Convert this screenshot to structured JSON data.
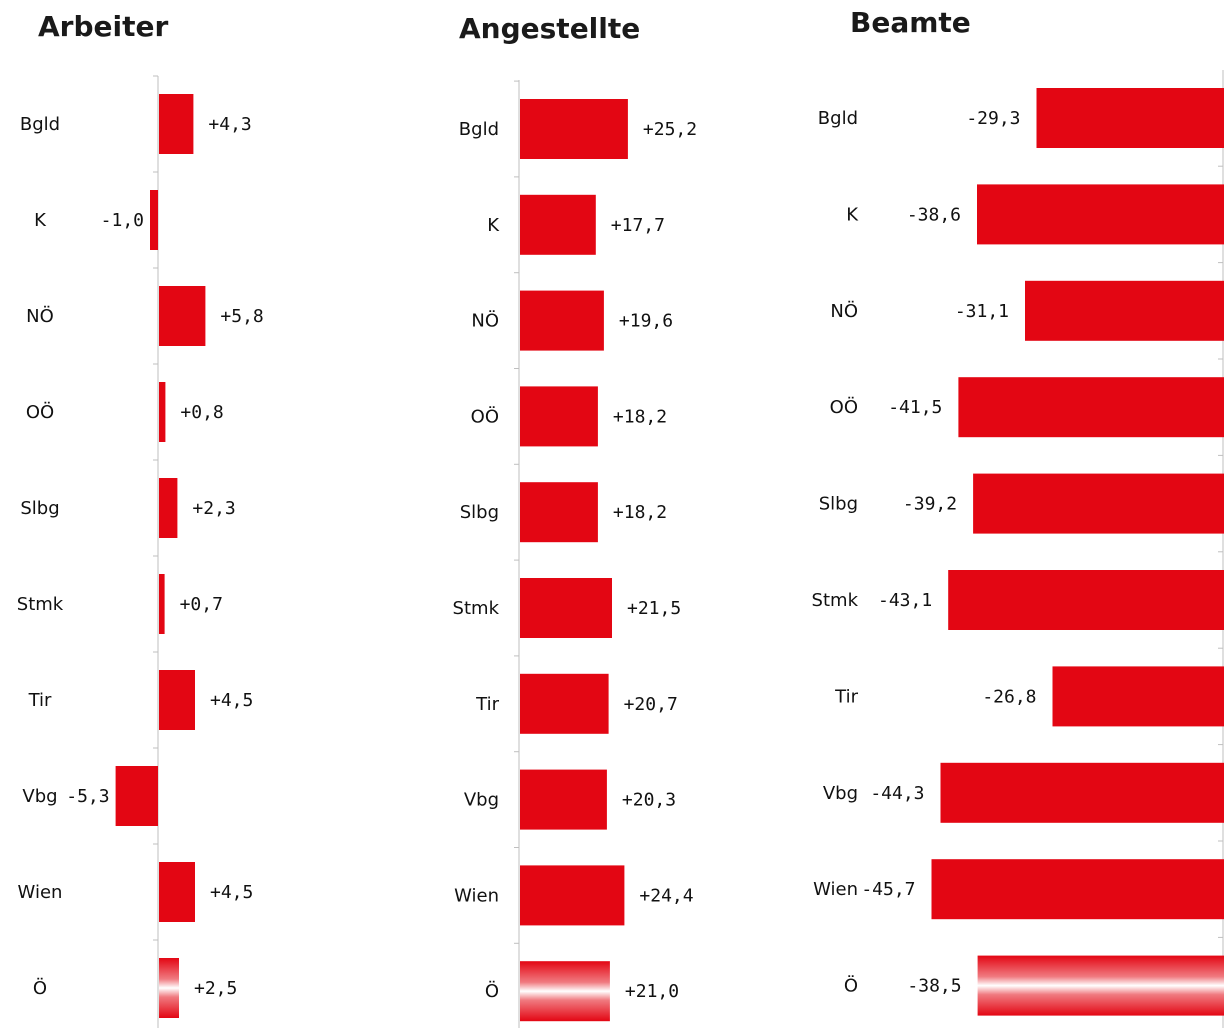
{
  "colors": {
    "bar": "#e30613",
    "axis": "#bfbfbf",
    "text": "#111111"
  },
  "chart_data": [
    {
      "type": "bar",
      "orientation": "horizontal",
      "title": "Arbeiter",
      "categories": [
        "Bgld",
        "K",
        "NÖ",
        "OÖ",
        "Slbg",
        "Stmk",
        "Tir",
        "Vbg",
        "Wien",
        "Ö"
      ],
      "values": [
        4.3,
        -1.0,
        5.8,
        0.8,
        2.3,
        0.7,
        4.5,
        -5.3,
        4.5,
        2.5
      ],
      "labels": [
        "+4,3",
        "-1,0",
        "+5,8",
        "+0,8",
        "+2,3",
        "+0,7",
        "+4,5",
        "-5,3",
        "+4,5",
        "+2,5"
      ],
      "highlight_last": true
    },
    {
      "type": "bar",
      "orientation": "horizontal",
      "title": "Angestellte",
      "categories": [
        "Bgld",
        "K",
        "NÖ",
        "OÖ",
        "Slbg",
        "Stmk",
        "Tir",
        "Vbg",
        "Wien",
        "Ö"
      ],
      "values": [
        25.2,
        17.7,
        19.6,
        18.2,
        18.2,
        21.5,
        20.7,
        20.3,
        24.4,
        21.0
      ],
      "labels": [
        "+25,2",
        "+17,7",
        "+19,6",
        "+18,2",
        "+18,2",
        "+21,5",
        "+20,7",
        "+20,3",
        "+24,4",
        "+21,0"
      ],
      "highlight_last": true
    },
    {
      "type": "bar",
      "orientation": "horizontal",
      "title": "Beamte",
      "categories": [
        "Bgld",
        "K",
        "NÖ",
        "OÖ",
        "Slbg",
        "Stmk",
        "Tir",
        "Vbg",
        "Wien",
        "Ö"
      ],
      "values": [
        -29.3,
        -38.6,
        -31.1,
        -41.5,
        -39.2,
        -43.1,
        -26.8,
        -44.3,
        -45.7,
        -38.5
      ],
      "labels": [
        "-29,3",
        "-38,6",
        "-31,1",
        "-41,5",
        "-39,2",
        "-43,1",
        "-26,8",
        "-44,3",
        "-45,7",
        "-38,5"
      ],
      "highlight_last": true
    }
  ]
}
